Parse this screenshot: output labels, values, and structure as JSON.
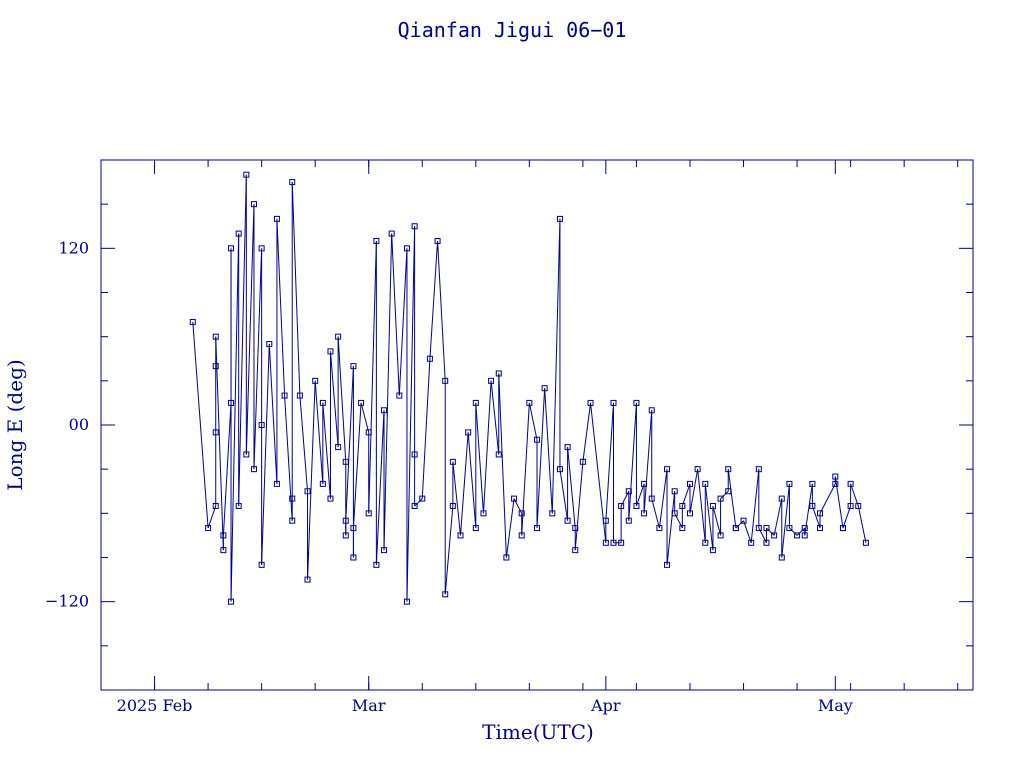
{
  "chart_data": {
    "type": "line",
    "title": "Qianfan Jigui 06−01",
    "xlabel": "Time(UTC)",
    "ylabel": "Long E (deg)",
    "x_ticks": [
      "2025 Feb",
      "Mar",
      "Apr",
      "May"
    ],
    "x_tick_dates": [
      "2025-02-01",
      "2025-03-01",
      "2025-04-01",
      "2025-05-01"
    ],
    "xlim": [
      "2025-01-25",
      "2025-05-19"
    ],
    "y_ticks": [
      "−120",
      "00",
      "120"
    ],
    "y_tick_values": [
      -120,
      0,
      120
    ],
    "ylim": [
      -180,
      180
    ],
    "grid": false,
    "legend": "none",
    "series": [
      {
        "marker": "square",
        "color": "#00008b",
        "x": [
          "2025-02-06",
          "2025-02-08",
          "2025-02-09",
          "2025-02-09",
          "2025-02-09",
          "2025-02-09",
          "2025-02-10",
          "2025-02-10",
          "2025-02-11",
          "2025-02-11",
          "2025-02-11",
          "2025-02-12",
          "2025-02-12",
          "2025-02-13",
          "2025-02-13",
          "2025-02-14",
          "2025-02-14",
          "2025-02-15",
          "2025-02-15",
          "2025-02-15",
          "2025-02-16",
          "2025-02-17",
          "2025-02-17",
          "2025-02-18",
          "2025-02-19",
          "2025-02-19",
          "2025-02-19",
          "2025-02-20",
          "2025-02-21",
          "2025-02-21",
          "2025-02-22",
          "2025-02-23",
          "2025-02-23",
          "2025-02-24",
          "2025-02-24",
          "2025-02-25",
          "2025-02-25",
          "2025-02-26",
          "2025-02-26",
          "2025-02-26",
          "2025-02-27",
          "2025-02-27",
          "2025-02-27",
          "2025-02-28",
          "2025-03-01",
          "2025-03-01",
          "2025-03-02",
          "2025-03-02",
          "2025-03-03",
          "2025-03-03",
          "2025-03-04",
          "2025-03-05",
          "2025-03-06",
          "2025-03-06",
          "2025-03-07",
          "2025-03-07",
          "2025-03-07",
          "2025-03-08",
          "2025-03-09",
          "2025-03-10",
          "2025-03-11",
          "2025-03-11",
          "2025-03-12",
          "2025-03-12",
          "2025-03-13",
          "2025-03-14",
          "2025-03-15",
          "2025-03-15",
          "2025-03-16",
          "2025-03-17",
          "2025-03-18",
          "2025-03-18",
          "2025-03-19",
          "2025-03-20",
          "2025-03-21",
          "2025-03-21",
          "2025-03-22",
          "2025-03-23",
          "2025-03-23",
          "2025-03-24",
          "2025-03-25",
          "2025-03-26",
          "2025-03-26",
          "2025-03-27",
          "2025-03-27",
          "2025-03-28",
          "2025-03-28",
          "2025-03-29",
          "2025-03-30",
          "2025-04-01",
          "2025-04-01",
          "2025-04-02",
          "2025-04-02",
          "2025-04-03",
          "2025-04-03",
          "2025-04-04",
          "2025-04-04",
          "2025-04-05",
          "2025-04-05",
          "2025-04-06",
          "2025-04-06",
          "2025-04-07",
          "2025-04-07",
          "2025-04-08",
          "2025-04-09",
          "2025-04-09",
          "2025-04-10",
          "2025-04-10",
          "2025-04-11",
          "2025-04-11",
          "2025-04-12",
          "2025-04-12",
          "2025-04-13",
          "2025-04-14",
          "2025-04-14",
          "2025-04-15",
          "2025-04-15",
          "2025-04-16",
          "2025-04-16",
          "2025-04-17",
          "2025-04-17",
          "2025-04-18",
          "2025-04-18",
          "2025-04-19",
          "2025-04-20",
          "2025-04-21",
          "2025-04-21",
          "2025-04-22",
          "2025-04-22",
          "2025-04-23",
          "2025-04-24",
          "2025-04-24",
          "2025-04-25",
          "2025-04-25",
          "2025-04-26",
          "2025-04-27",
          "2025-04-27",
          "2025-04-28",
          "2025-04-28",
          "2025-04-29",
          "2025-04-29",
          "2025-05-01",
          "2025-05-01",
          "2025-05-02",
          "2025-05-02",
          "2025-05-03",
          "2025-05-03",
          "2025-05-04",
          "2025-05-05"
        ],
        "y": [
          70,
          -70,
          -55,
          -5,
          40,
          60,
          -85,
          -75,
          15,
          120,
          -120,
          130,
          -55,
          170,
          -20,
          150,
          -30,
          120,
          0,
          -95,
          55,
          -40,
          140,
          20,
          -65,
          -50,
          165,
          20,
          -45,
          -105,
          30,
          -40,
          15,
          -50,
          50,
          -15,
          60,
          -25,
          -75,
          -65,
          40,
          -90,
          -70,
          15,
          -5,
          -60,
          125,
          -95,
          10,
          -85,
          130,
          20,
          120,
          -120,
          135,
          -20,
          -55,
          -50,
          45,
          125,
          30,
          -115,
          -55,
          -25,
          -75,
          -5,
          -70,
          15,
          -60,
          30,
          -20,
          35,
          -90,
          -50,
          -60,
          -75,
          15,
          -10,
          -70,
          25,
          -60,
          140,
          -30,
          -65,
          -15,
          -70,
          -85,
          -25,
          15,
          -80,
          -65,
          15,
          -80,
          -80,
          -55,
          -45,
          -65,
          15,
          -55,
          -40,
          -60,
          10,
          -50,
          -70,
          -30,
          -95,
          -45,
          -60,
          -70,
          -55,
          -40,
          -60,
          -30,
          -80,
          -40,
          -85,
          -55,
          -75,
          -50,
          -45,
          -30,
          -70,
          -70,
          -65,
          -80,
          -30,
          -70,
          -80,
          -70,
          -75,
          -50,
          -90,
          -40,
          -70,
          -75,
          -70,
          -75,
          -40,
          -55,
          -70,
          -60,
          -40,
          -35,
          -70,
          -70,
          -55,
          -40,
          -55,
          -80
        ]
      }
    ]
  }
}
